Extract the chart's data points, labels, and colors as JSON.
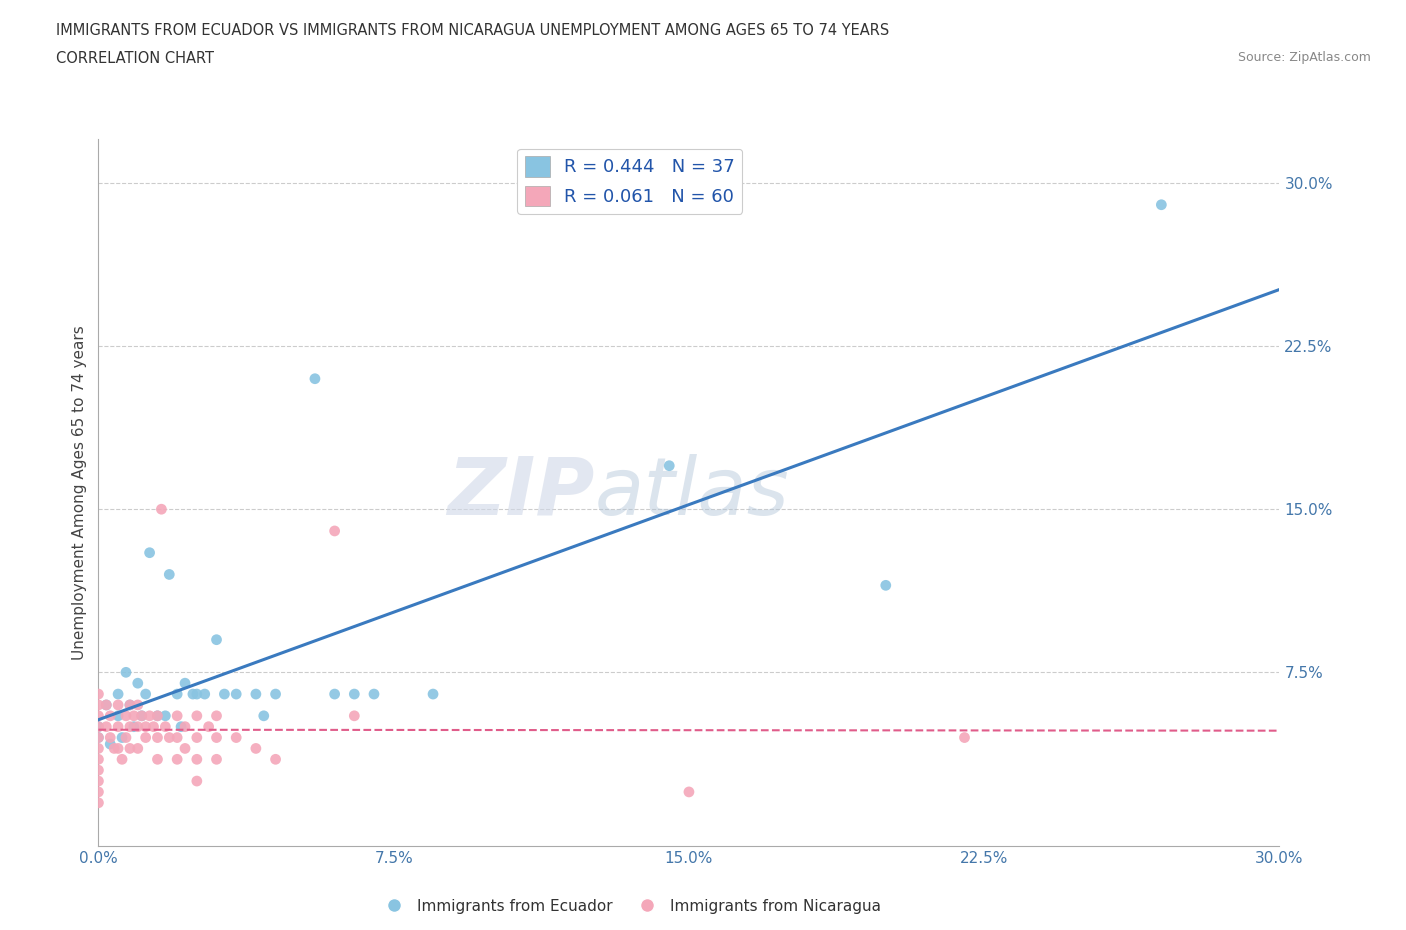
{
  "title_line1": "IMMIGRANTS FROM ECUADOR VS IMMIGRANTS FROM NICARAGUA UNEMPLOYMENT AMONG AGES 65 TO 74 YEARS",
  "title_line2": "CORRELATION CHART",
  "source_text": "Source: ZipAtlas.com",
  "ylabel": "Unemployment Among Ages 65 to 74 years",
  "xlim": [
    0.0,
    0.3
  ],
  "ylim": [
    -0.005,
    0.32
  ],
  "xticks": [
    0.0,
    0.075,
    0.15,
    0.225,
    0.3
  ],
  "yticks": [
    0.075,
    0.15,
    0.225,
    0.3
  ],
  "xticklabels": [
    "0.0%",
    "7.5%",
    "15.0%",
    "22.5%",
    "30.0%"
  ],
  "yticklabels": [
    "7.5%",
    "15.0%",
    "22.5%",
    "30.0%"
  ],
  "ecuador_color": "#89c4e1",
  "nicaragua_color": "#f4a7b9",
  "ecuador_line_color": "#3a7abf",
  "nicaragua_line_color": "#e05c8a",
  "ecuador_R": 0.444,
  "ecuador_N": 37,
  "nicaragua_R": 0.061,
  "nicaragua_N": 60,
  "watermark_part1": "ZIP",
  "watermark_part2": "atlas",
  "ecuador_points": [
    [
      0.0,
      0.05
    ],
    [
      0.0,
      0.045
    ],
    [
      0.002,
      0.06
    ],
    [
      0.003,
      0.042
    ],
    [
      0.005,
      0.055
    ],
    [
      0.005,
      0.065
    ],
    [
      0.006,
      0.045
    ],
    [
      0.007,
      0.075
    ],
    [
      0.008,
      0.06
    ],
    [
      0.009,
      0.05
    ],
    [
      0.01,
      0.07
    ],
    [
      0.011,
      0.055
    ],
    [
      0.012,
      0.065
    ],
    [
      0.013,
      0.13
    ],
    [
      0.015,
      0.055
    ],
    [
      0.017,
      0.055
    ],
    [
      0.018,
      0.12
    ],
    [
      0.02,
      0.065
    ],
    [
      0.021,
      0.05
    ],
    [
      0.022,
      0.07
    ],
    [
      0.024,
      0.065
    ],
    [
      0.025,
      0.065
    ],
    [
      0.027,
      0.065
    ],
    [
      0.03,
      0.09
    ],
    [
      0.032,
      0.065
    ],
    [
      0.035,
      0.065
    ],
    [
      0.04,
      0.065
    ],
    [
      0.042,
      0.055
    ],
    [
      0.045,
      0.065
    ],
    [
      0.055,
      0.21
    ],
    [
      0.06,
      0.065
    ],
    [
      0.065,
      0.065
    ],
    [
      0.07,
      0.065
    ],
    [
      0.085,
      0.065
    ],
    [
      0.145,
      0.17
    ],
    [
      0.2,
      0.115
    ],
    [
      0.27,
      0.29
    ]
  ],
  "nicaragua_points": [
    [
      0.0,
      0.055
    ],
    [
      0.0,
      0.065
    ],
    [
      0.0,
      0.06
    ],
    [
      0.0,
      0.05
    ],
    [
      0.0,
      0.045
    ],
    [
      0.0,
      0.04
    ],
    [
      0.0,
      0.035
    ],
    [
      0.0,
      0.03
    ],
    [
      0.0,
      0.025
    ],
    [
      0.0,
      0.02
    ],
    [
      0.0,
      0.015
    ],
    [
      0.002,
      0.06
    ],
    [
      0.002,
      0.05
    ],
    [
      0.003,
      0.055
    ],
    [
      0.003,
      0.045
    ],
    [
      0.004,
      0.04
    ],
    [
      0.005,
      0.06
    ],
    [
      0.005,
      0.05
    ],
    [
      0.005,
      0.04
    ],
    [
      0.006,
      0.035
    ],
    [
      0.007,
      0.055
    ],
    [
      0.007,
      0.045
    ],
    [
      0.008,
      0.06
    ],
    [
      0.008,
      0.05
    ],
    [
      0.008,
      0.04
    ],
    [
      0.009,
      0.055
    ],
    [
      0.01,
      0.06
    ],
    [
      0.01,
      0.05
    ],
    [
      0.01,
      0.04
    ],
    [
      0.011,
      0.055
    ],
    [
      0.012,
      0.05
    ],
    [
      0.012,
      0.045
    ],
    [
      0.013,
      0.055
    ],
    [
      0.014,
      0.05
    ],
    [
      0.015,
      0.055
    ],
    [
      0.015,
      0.045
    ],
    [
      0.015,
      0.035
    ],
    [
      0.016,
      0.15
    ],
    [
      0.017,
      0.05
    ],
    [
      0.018,
      0.045
    ],
    [
      0.02,
      0.055
    ],
    [
      0.02,
      0.045
    ],
    [
      0.02,
      0.035
    ],
    [
      0.022,
      0.05
    ],
    [
      0.022,
      0.04
    ],
    [
      0.025,
      0.055
    ],
    [
      0.025,
      0.045
    ],
    [
      0.025,
      0.035
    ],
    [
      0.025,
      0.025
    ],
    [
      0.028,
      0.05
    ],
    [
      0.03,
      0.055
    ],
    [
      0.03,
      0.045
    ],
    [
      0.03,
      0.035
    ],
    [
      0.035,
      0.045
    ],
    [
      0.04,
      0.04
    ],
    [
      0.045,
      0.035
    ],
    [
      0.06,
      0.14
    ],
    [
      0.065,
      0.055
    ],
    [
      0.15,
      0.02
    ],
    [
      0.22,
      0.045
    ]
  ]
}
